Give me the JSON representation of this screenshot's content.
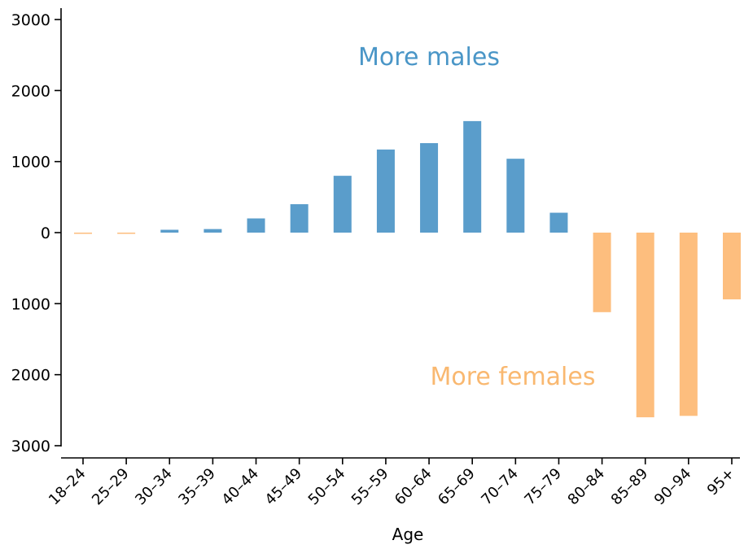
{
  "chart_data": {
    "type": "bar",
    "title": "",
    "xlabel": "Age",
    "ylabel": "",
    "categories": [
      "18–24",
      "25–29",
      "30–34",
      "35–39",
      "40–44",
      "45–49",
      "50–54",
      "55–59",
      "60–64",
      "65–69",
      "70–74",
      "75–79",
      "80–84",
      "85–89",
      "90–94",
      "95+"
    ],
    "values": [
      -10,
      -10,
      40,
      50,
      200,
      400,
      800,
      1170,
      1260,
      1570,
      1040,
      280,
      -1120,
      -2600,
      -2580,
      -940
    ],
    "ylim": [
      -3000,
      3000
    ],
    "yticks": [
      3000,
      2000,
      1000,
      0,
      -1000,
      -2000,
      -3000
    ],
    "ytick_labels": [
      "3000",
      "2000",
      "1000",
      "0",
      "1000",
      "2000",
      "3000"
    ],
    "grid": false,
    "annotations": [
      {
        "text": "More males",
        "color": "#4a96c7"
      },
      {
        "text": "More females",
        "color": "#f9b870"
      }
    ],
    "colors": {
      "positive": "#5a9dcb",
      "negative": "#fdbe7e"
    }
  }
}
